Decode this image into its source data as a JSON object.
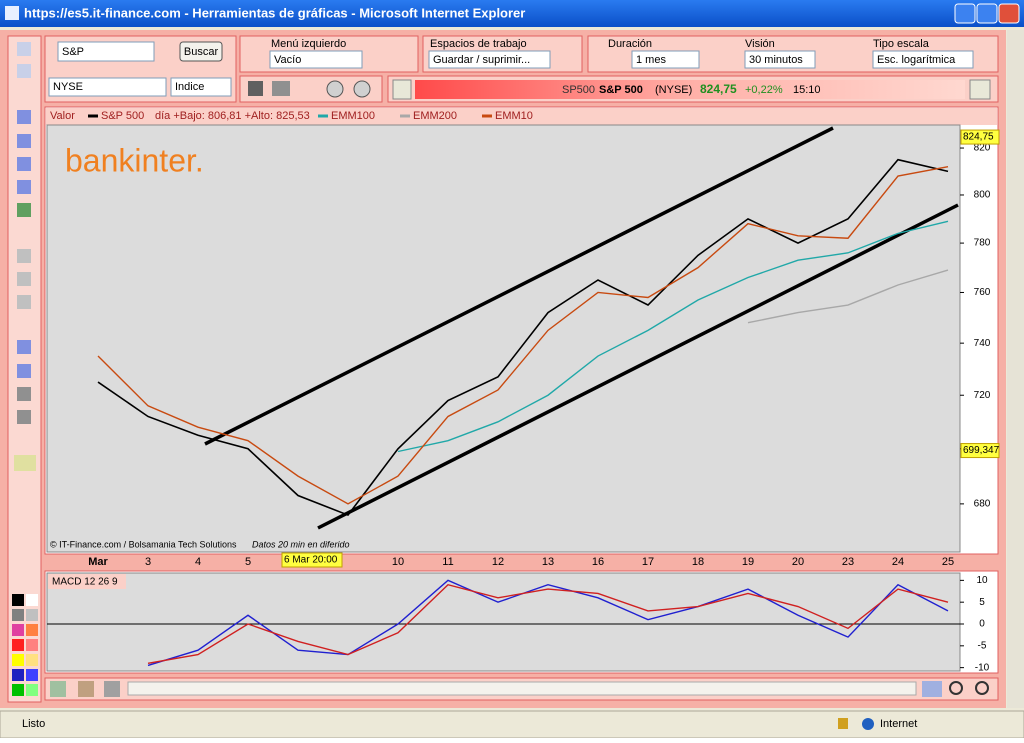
{
  "window": {
    "title": "https://es5.it-finance.com - Herramientas de gráficas - Microsoft Internet Explorer",
    "status": "Listo",
    "zone": "Internet"
  },
  "toolbar": {
    "search": "S&P",
    "search_button": "Buscar",
    "market": "NYSE",
    "instrument_type": "Indice",
    "left_menu_label": "Menú izquierdo",
    "left_menu_value": "Vacío",
    "workspace_label": "Espacios de trabajo",
    "workspace_value": "Guardar / suprimir...",
    "duration_label": "Duración",
    "duration_value": "1 mes",
    "view_label": "Visión",
    "view_value": "30 minutos",
    "scale_label": "Tipo escala",
    "scale_value": "Esc. logarítmica"
  },
  "ticker": {
    "symbol": "SP500",
    "name": "S&P 500",
    "market": "(NYSE)",
    "price": "824,75",
    "change": "+0,22%",
    "time": "15:10"
  },
  "chart_data": [
    {
      "type": "line",
      "legend_label": "Valor",
      "range_text": "día +Bajo: 806,81 +Alto: 825,53",
      "logo": "bankinter.",
      "credit": "© IT-Finance.com / Bolsamania Tech Solutions",
      "delay_note": "Datos 20 min en diferido",
      "cursor_label": "6 Mar 20:00",
      "categories": [
        "Mar",
        "3",
        "4",
        "5",
        "6",
        null,
        "10",
        "11",
        "12",
        "13",
        "16",
        "17",
        "18",
        "19",
        "20",
        "23",
        "24",
        "25"
      ],
      "series": [
        {
          "name": "S&P 500",
          "color": "#000000",
          "values": [
            725,
            712,
            705,
            700,
            683,
            676,
            700,
            718,
            727,
            752,
            765,
            755,
            775,
            790,
            780,
            790,
            815,
            810
          ]
        },
        {
          "name": "EMM100",
          "color": "#20a8a8",
          "values": [
            null,
            null,
            null,
            null,
            null,
            null,
            699,
            703,
            710,
            720,
            735,
            745,
            757,
            766,
            773,
            776,
            784,
            789
          ]
        },
        {
          "name": "EMM200",
          "color": "#a8a8a8",
          "values": [
            null,
            null,
            null,
            null,
            null,
            null,
            null,
            null,
            null,
            null,
            null,
            null,
            null,
            748,
            752,
            755,
            763,
            769
          ]
        },
        {
          "name": "EMM10",
          "color": "#c84a10",
          "values": [
            735,
            716,
            708,
            703,
            690,
            680,
            690,
            712,
            722,
            745,
            760,
            758,
            770,
            788,
            783,
            782,
            808,
            812
          ]
        }
      ],
      "ylim": [
        663,
        830
      ],
      "yticks": [
        680,
        700,
        720,
        740,
        760,
        780,
        800,
        820
      ],
      "log_scale": true,
      "grid": false,
      "price_flags": [
        {
          "value": 824.75,
          "label": "824,75"
        },
        {
          "value": 699.347,
          "label": "699,347"
        }
      ]
    },
    {
      "type": "line",
      "title": "MACD 12 26 9",
      "series": [
        {
          "color": "#2020d0",
          "values": [
            null,
            -9.5,
            -6,
            2,
            -6,
            -7,
            0,
            10,
            5,
            9,
            6,
            1,
            4,
            8,
            2,
            -3,
            9,
            3
          ]
        },
        {
          "color": "#d02020",
          "values": [
            null,
            -9,
            -7,
            0,
            -4,
            -7,
            -2,
            9,
            6,
            8,
            7,
            3,
            4,
            7,
            4,
            -1,
            8,
            5
          ]
        }
      ],
      "ylim": [
        -11,
        11
      ],
      "yticks": [
        10,
        5,
        0,
        -5,
        -10
      ]
    }
  ]
}
